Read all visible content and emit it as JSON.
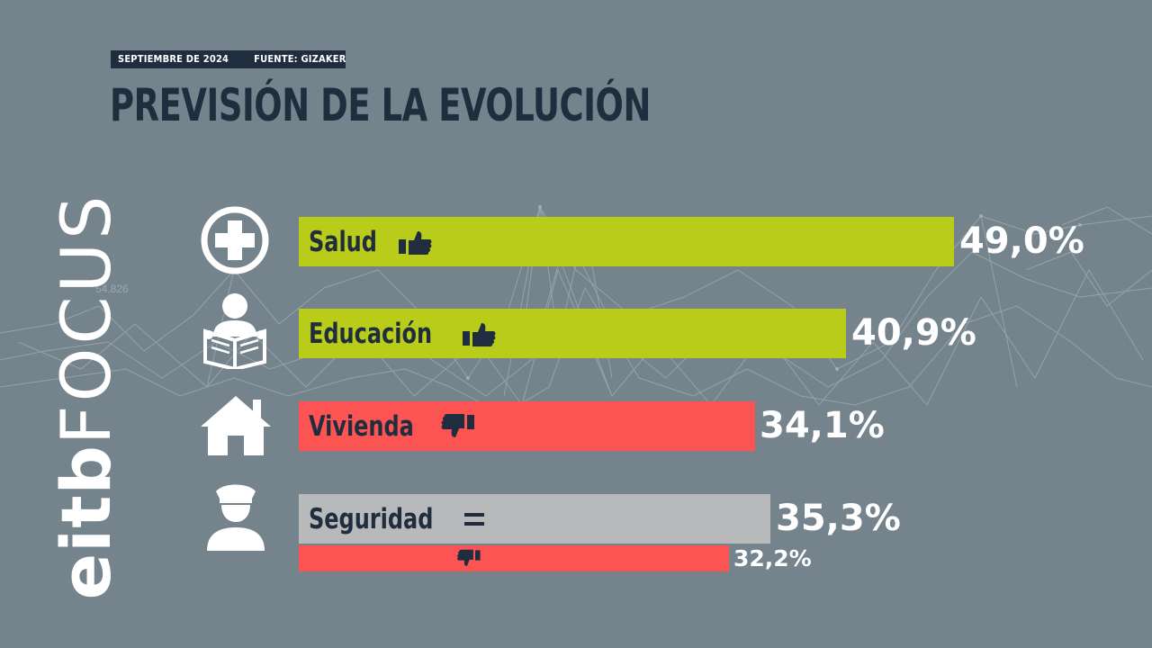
{
  "header": {
    "date": "SEPTIEMBRE DE 2024",
    "source": "FUENTE: GIZAKER",
    "title": "PREVISIÓN DE LA EVOLUCIÓN"
  },
  "logo": {
    "part1": "eitb",
    "part2": "FOCUS"
  },
  "background": {
    "ticker_text": "54.826"
  },
  "colors": {
    "background": "#75838d",
    "navy": "#1f2d3f",
    "positive": "#b8cc19",
    "negative": "#fc5452",
    "neutral": "#b7b9ba",
    "text_light": "#ffffff"
  },
  "chart_data": {
    "type": "bar",
    "orientation": "horizontal",
    "title": "PREVISIÓN DE LA EVOLUCIÓN",
    "xlim": [
      0,
      56
    ],
    "categories": [
      "Salud",
      "Educación",
      "Vivienda",
      "Seguridad"
    ],
    "values": [
      49.0,
      40.9,
      34.1,
      35.3
    ],
    "value_labels": [
      "49,0%",
      "40,9%",
      "34,1%",
      "35,3%"
    ],
    "category_icons": [
      "medical-cross-icon",
      "reading-person-icon",
      "house-icon",
      "police-officer-icon"
    ],
    "trend_icons": [
      "thumbs-up-icon",
      "thumbs-up-icon",
      "thumbs-down-icon",
      "equals-icon"
    ],
    "bar_colors": [
      "#b8cc19",
      "#b8cc19",
      "#fc5452",
      "#b7b9ba"
    ],
    "sub_bars": [
      {
        "category": "Seguridad",
        "value": 32.2,
        "value_label": "32,2%",
        "trend_icon": "thumbs-down-icon",
        "color": "#fc5452"
      }
    ]
  }
}
